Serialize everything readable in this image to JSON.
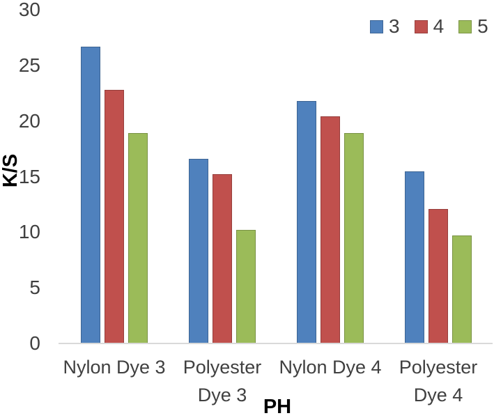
{
  "chart_data": {
    "type": "bar",
    "title": "",
    "xlabel": "PH",
    "ylabel": "K/S",
    "categories": [
      "Nylon Dye 3",
      "Polyester Dye 3",
      "Nylon Dye 4",
      "Polyester Dye 4"
    ],
    "series": [
      {
        "name": "3",
        "color": "#4f81bd",
        "values": [
          26.7,
          16.6,
          21.8,
          15.5
        ]
      },
      {
        "name": "4",
        "color": "#c0504d",
        "values": [
          22.8,
          15.2,
          20.4,
          12.1
        ]
      },
      {
        "name": "5",
        "color": "#9bbb59",
        "values": [
          18.9,
          10.2,
          18.9,
          9.7
        ]
      }
    ],
    "ylim": [
      0,
      30
    ],
    "yticks": [
      0,
      5,
      10,
      15,
      20,
      25,
      30
    ],
    "grid": false,
    "legend_position": "top-right",
    "colors": {
      "axis_line": "#d9d9d9",
      "tick_text": "#404040",
      "category_text": "#404040",
      "axis_title_text": "#000000"
    }
  }
}
